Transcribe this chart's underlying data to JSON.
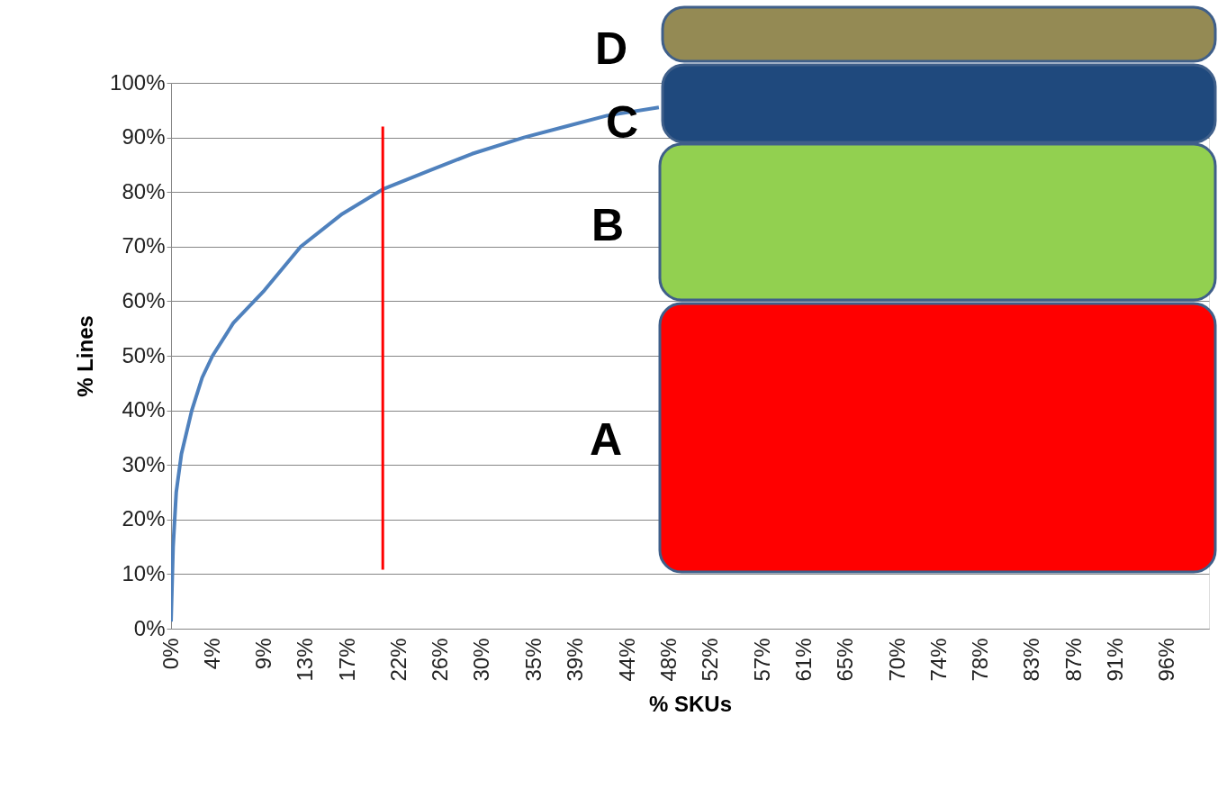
{
  "chart_data": {
    "type": "line",
    "xlabel": "% SKUs",
    "ylabel": "% Lines",
    "xlim": [
      0,
      100
    ],
    "xticks": [
      {
        "value": 0,
        "label": "0%"
      },
      {
        "value": 4,
        "label": "4%"
      },
      {
        "value": 9,
        "label": "9%"
      },
      {
        "value": 13,
        "label": "13%"
      },
      {
        "value": 17,
        "label": "17%"
      },
      {
        "value": 22,
        "label": "22%"
      },
      {
        "value": 26,
        "label": "26%"
      },
      {
        "value": 30,
        "label": "30%"
      },
      {
        "value": 35,
        "label": "35%"
      },
      {
        "value": 39,
        "label": "39%"
      },
      {
        "value": 44,
        "label": "44%"
      },
      {
        "value": 48,
        "label": "48%"
      },
      {
        "value": 52,
        "label": "52%"
      },
      {
        "value": 57,
        "label": "57%"
      },
      {
        "value": 61,
        "label": "61%"
      },
      {
        "value": 65,
        "label": "65%"
      },
      {
        "value": 70,
        "label": "70%"
      },
      {
        "value": 74,
        "label": "74%"
      },
      {
        "value": 78,
        "label": "78%"
      },
      {
        "value": 83,
        "label": "83%"
      },
      {
        "value": 87,
        "label": "87%"
      },
      {
        "value": 91,
        "label": "91%"
      },
      {
        "value": 96,
        "label": "96%"
      }
    ],
    "ylim": [
      0,
      100
    ],
    "yticks": [
      {
        "value": 0,
        "label": "0%"
      },
      {
        "value": 10,
        "label": "10%"
      },
      {
        "value": 20,
        "label": "20%"
      },
      {
        "value": 30,
        "label": "30%"
      },
      {
        "value": 40,
        "label": "40%"
      },
      {
        "value": 50,
        "label": "50%"
      },
      {
        "value": 60,
        "label": "60%"
      },
      {
        "value": 70,
        "label": "70%"
      },
      {
        "value": 80,
        "label": "80%"
      },
      {
        "value": 90,
        "label": "90%"
      },
      {
        "value": 100,
        "label": "100%"
      }
    ],
    "grid": "y",
    "series": [
      {
        "color": "#4f81bd",
        "x": [
          0,
          0.2,
          0.5,
          1,
          2,
          3,
          4,
          6,
          9,
          12.5,
          16.5,
          20.4,
          25,
          29,
          34,
          38,
          42,
          47
        ],
        "values": [
          1.3,
          15,
          25,
          32,
          40,
          46,
          50,
          56,
          62,
          70,
          76,
          80.5,
          84,
          87,
          90,
          92,
          94,
          95.5
        ]
      },
      {
        "color": "#ff0000",
        "x": [
          20.4,
          20.4
        ],
        "values": [
          10.8,
          92
        ]
      }
    ],
    "annotations": [
      "A",
      "B",
      "C",
      "D"
    ]
  }
}
